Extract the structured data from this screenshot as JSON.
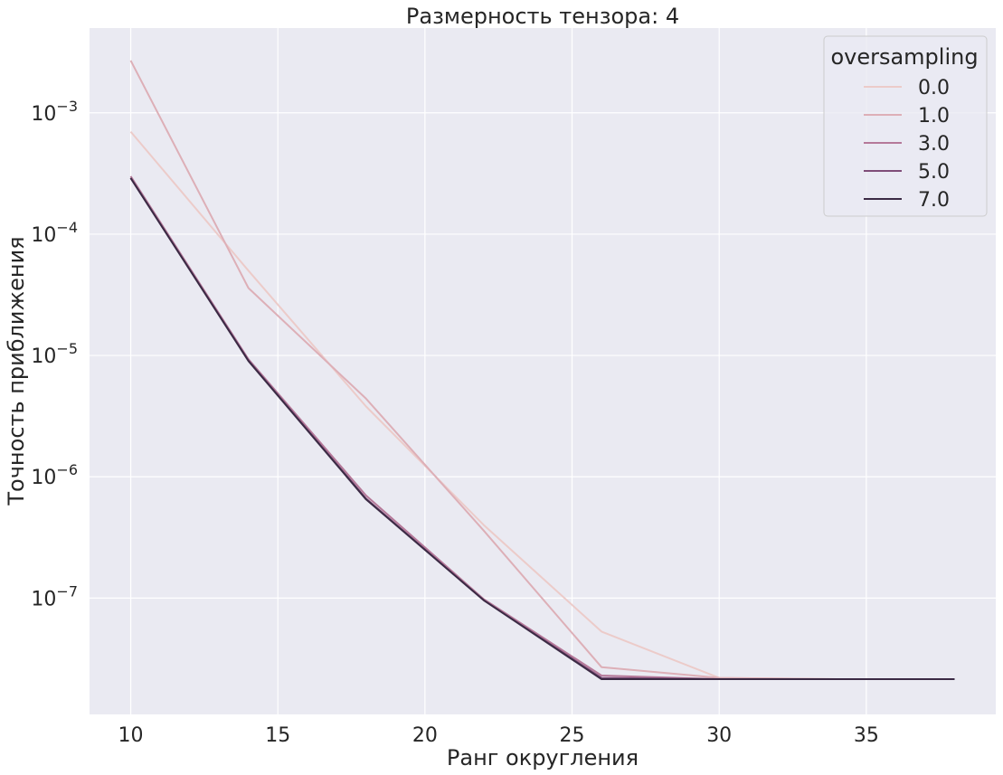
{
  "chart_data": {
    "type": "line",
    "title": "Размерность тензора: 4",
    "xlabel": "Ранг округления",
    "ylabel": "Точность приближения",
    "yscale": "log",
    "grid": true,
    "background": "#eaeaf2",
    "xlim": [
      8.6,
      39.4
    ],
    "ylim": [
      1.1e-08,
      0.005
    ],
    "xticks": [
      10,
      15,
      20,
      25,
      30,
      35
    ],
    "yticks": [
      {
        "value": 0.001,
        "base": "10",
        "exp": "−3"
      },
      {
        "value": 0.0001,
        "base": "10",
        "exp": "−4"
      },
      {
        "value": 1e-05,
        "base": "10",
        "exp": "−5"
      },
      {
        "value": 1e-06,
        "base": "10",
        "exp": "−6"
      },
      {
        "value": 1e-07,
        "base": "10",
        "exp": "−7"
      }
    ],
    "legend": {
      "title": "oversampling",
      "position": "top-right"
    },
    "x": [
      10,
      14,
      18,
      22,
      26,
      30,
      34,
      38
    ],
    "series": [
      {
        "name": "0.0",
        "color": "#eccbc9",
        "values": [
          0.0007,
          5e-05,
          3.8e-06,
          4e-07,
          5.3e-08,
          2.2e-08,
          2.15e-08,
          2.15e-08
        ]
      },
      {
        "name": "1.0",
        "color": "#ddafb7",
        "values": [
          0.0027,
          3.6e-05,
          4.4e-06,
          3.6e-07,
          2.7e-08,
          2.2e-08,
          2.15e-08,
          2.15e-08
        ]
      },
      {
        "name": "3.0",
        "color": "#b57999",
        "values": [
          0.0003,
          9.3e-06,
          7e-07,
          9.8e-08,
          2.3e-08,
          2.15e-08,
          2.15e-08,
          2.15e-08
        ]
      },
      {
        "name": "5.0",
        "color": "#7f4d78",
        "values": [
          0.00029,
          9.1e-06,
          6.6e-07,
          9.6e-08,
          2.2e-08,
          2.15e-08,
          2.15e-08,
          2.15e-08
        ]
      },
      {
        "name": "7.0",
        "color": "#3b2a44",
        "values": [
          0.00029,
          9e-06,
          6.5e-07,
          9.6e-08,
          2.15e-08,
          2.15e-08,
          2.15e-08,
          2.15e-08
        ]
      }
    ]
  }
}
